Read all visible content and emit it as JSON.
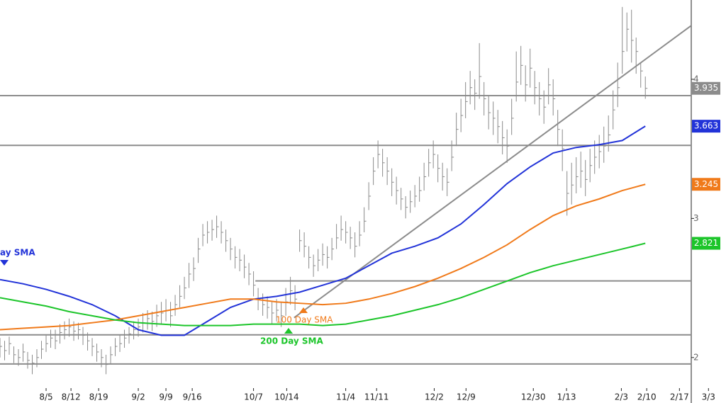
{
  "chart_data": {
    "type": "ohlc",
    "bar_color": "#8a8a8a",
    "line_color": "#8c8c8c",
    "xlim": [
      0,
      157.5
    ],
    "ylim": [
      1.78,
      4.57
    ],
    "xticks": [
      {
        "value": 10,
        "label": "8/5"
      },
      {
        "value": 15.4,
        "label": "8/12"
      },
      {
        "value": 21.4,
        "label": "8/19"
      },
      {
        "value": 30,
        "label": "9/2"
      },
      {
        "value": 36,
        "label": "9/9"
      },
      {
        "value": 41.7,
        "label": "9/16"
      },
      {
        "value": 55,
        "label": "10/7"
      },
      {
        "value": 62.2,
        "label": "10/14"
      },
      {
        "value": 75,
        "label": "11/4"
      },
      {
        "value": 81.7,
        "label": "11/11"
      },
      {
        "value": 94.2,
        "label": "12/2"
      },
      {
        "value": 101.1,
        "label": "12/9"
      },
      {
        "value": 115.7,
        "label": "12/30"
      },
      {
        "value": 122.9,
        "label": "1/13"
      },
      {
        "value": 134.8,
        "label": "2/3"
      },
      {
        "value": 140.3,
        "label": "2/10"
      },
      {
        "value": 147.4,
        "label": "2/17"
      },
      {
        "value": 153.7,
        "label": "3/3"
      }
    ],
    "yticks": [
      2,
      3,
      4
    ],
    "x": [
      0,
      1,
      2,
      3,
      4,
      5,
      6,
      7,
      8,
      9,
      10,
      11,
      12,
      13,
      14,
      15,
      16,
      17,
      18,
      19,
      20,
      21,
      22,
      23,
      24,
      25,
      26,
      27,
      28,
      29,
      30,
      31,
      32,
      33,
      34,
      35,
      36,
      37,
      38,
      39,
      40,
      41,
      42,
      43,
      44,
      45,
      46,
      47,
      48,
      49,
      50,
      51,
      52,
      53,
      54,
      55,
      56,
      57,
      58,
      59,
      60,
      61,
      62,
      63,
      64,
      65,
      66,
      67,
      68,
      69,
      70,
      71,
      72,
      73,
      74,
      75,
      76,
      77,
      78,
      79,
      80,
      81,
      82,
      83,
      84,
      85,
      86,
      87,
      88,
      89,
      90,
      91,
      92,
      93,
      94,
      95,
      96,
      97,
      98,
      99,
      100,
      101,
      102,
      103,
      104,
      105,
      106,
      107,
      108,
      109,
      110,
      111,
      112,
      113,
      114,
      115,
      116,
      117,
      118,
      119,
      120,
      121,
      122,
      123,
      124,
      125,
      126,
      127,
      128,
      129,
      130,
      131,
      132,
      133,
      134,
      135,
      136,
      137,
      138,
      139,
      140
    ],
    "high": [
      2.14,
      2.12,
      2.15,
      2.08,
      2.06,
      2.1,
      2.04,
      2.02,
      2.06,
      2.12,
      2.16,
      2.2,
      2.2,
      2.24,
      2.26,
      2.28,
      2.26,
      2.25,
      2.22,
      2.18,
      2.14,
      2.1,
      2.06,
      2.02,
      2.08,
      2.14,
      2.16,
      2.2,
      2.22,
      2.26,
      2.28,
      2.32,
      2.34,
      2.33,
      2.38,
      2.4,
      2.42,
      2.4,
      2.45,
      2.52,
      2.58,
      2.68,
      2.72,
      2.86,
      2.96,
      2.98,
      2.99,
      3.02,
      2.98,
      2.92,
      2.86,
      2.8,
      2.78,
      2.74,
      2.68,
      2.62,
      2.5,
      2.46,
      2.44,
      2.4,
      2.42,
      2.4,
      2.5,
      2.58,
      2.52,
      2.92,
      2.9,
      2.8,
      2.74,
      2.78,
      2.82,
      2.8,
      2.86,
      2.96,
      3.02,
      2.98,
      2.94,
      2.9,
      2.98,
      3.08,
      3.26,
      3.44,
      3.56,
      3.5,
      3.44,
      3.36,
      3.3,
      3.22,
      3.16,
      3.2,
      3.24,
      3.3,
      3.4,
      3.5,
      3.56,
      3.46,
      3.4,
      3.36,
      3.56,
      3.76,
      3.86,
      3.98,
      4.06,
      4.0,
      4.26,
      3.98,
      3.88,
      3.84,
      3.78,
      3.7,
      3.64,
      3.86,
      4.2,
      4.24,
      4.1,
      4.22,
      4.06,
      3.98,
      3.92,
      4.08,
      4.0,
      3.78,
      3.64,
      3.34,
      3.4,
      3.44,
      3.48,
      3.42,
      3.5,
      3.56,
      3.6,
      3.66,
      3.74,
      3.92,
      4.12,
      4.52,
      4.48,
      4.5,
      4.3,
      4.12,
      4.02
    ],
    "low": [
      2.0,
      1.98,
      2.02,
      1.96,
      1.94,
      1.97,
      1.92,
      1.88,
      1.93,
      1.99,
      2.04,
      2.07,
      2.06,
      2.1,
      2.13,
      2.15,
      2.12,
      2.13,
      2.09,
      2.05,
      2.01,
      1.97,
      1.93,
      1.88,
      1.95,
      2.01,
      2.04,
      2.07,
      2.1,
      2.13,
      2.15,
      2.18,
      2.2,
      2.19,
      2.22,
      2.24,
      2.26,
      2.22,
      2.3,
      2.36,
      2.42,
      2.5,
      2.55,
      2.68,
      2.8,
      2.82,
      2.84,
      2.86,
      2.82,
      2.76,
      2.7,
      2.64,
      2.62,
      2.57,
      2.52,
      2.44,
      2.34,
      2.3,
      2.28,
      2.24,
      2.26,
      2.22,
      2.3,
      2.38,
      2.34,
      2.76,
      2.72,
      2.64,
      2.58,
      2.62,
      2.66,
      2.64,
      2.7,
      2.78,
      2.84,
      2.82,
      2.78,
      2.72,
      2.8,
      2.9,
      3.06,
      3.24,
      3.36,
      3.3,
      3.24,
      3.16,
      3.1,
      3.06,
      3.0,
      3.04,
      3.08,
      3.12,
      3.2,
      3.3,
      3.36,
      3.26,
      3.2,
      3.16,
      3.34,
      3.52,
      3.62,
      3.72,
      3.82,
      3.78,
      3.86,
      3.74,
      3.64,
      3.6,
      3.54,
      3.46,
      3.4,
      3.6,
      3.84,
      3.96,
      3.84,
      3.94,
      3.82,
      3.74,
      3.68,
      3.82,
      3.74,
      3.52,
      3.34,
      3.02,
      3.1,
      3.18,
      3.22,
      3.16,
      3.26,
      3.32,
      3.36,
      3.4,
      3.48,
      3.64,
      3.8,
      4.04,
      4.2,
      4.12,
      4.04,
      3.94,
      3.86
    ],
    "close": [
      2.08,
      2.05,
      2.1,
      2.02,
      2.0,
      2.04,
      1.98,
      1.96,
      2.0,
      2.06,
      2.1,
      2.14,
      2.12,
      2.18,
      2.2,
      2.22,
      2.19,
      2.2,
      2.16,
      2.12,
      2.08,
      2.04,
      2.0,
      1.95,
      2.02,
      2.08,
      2.1,
      2.14,
      2.17,
      2.2,
      2.22,
      2.25,
      2.28,
      2.26,
      2.3,
      2.32,
      2.34,
      2.3,
      2.38,
      2.44,
      2.5,
      2.6,
      2.64,
      2.78,
      2.88,
      2.9,
      2.92,
      2.94,
      2.9,
      2.84,
      2.78,
      2.72,
      2.7,
      2.65,
      2.6,
      2.52,
      2.42,
      2.38,
      2.36,
      2.32,
      2.34,
      2.3,
      2.4,
      2.48,
      2.42,
      2.84,
      2.8,
      2.72,
      2.66,
      2.7,
      2.74,
      2.72,
      2.78,
      2.86,
      2.92,
      2.9,
      2.86,
      2.8,
      2.88,
      2.98,
      3.16,
      3.34,
      3.46,
      3.4,
      3.34,
      3.26,
      3.2,
      3.14,
      3.08,
      3.12,
      3.16,
      3.2,
      3.3,
      3.4,
      3.46,
      3.36,
      3.3,
      3.26,
      3.44,
      3.64,
      3.74,
      3.84,
      3.94,
      3.9,
      4.02,
      3.86,
      3.76,
      3.72,
      3.66,
      3.58,
      3.52,
      3.72,
      3.98,
      4.1,
      3.96,
      4.08,
      3.94,
      3.86,
      3.8,
      3.96,
      3.86,
      3.64,
      3.5,
      3.18,
      3.24,
      3.3,
      3.34,
      3.28,
      3.38,
      3.44,
      3.48,
      3.52,
      3.6,
      3.78,
      3.94,
      4.2,
      4.36,
      4.28,
      4.2,
      4.06,
      3.935
    ],
    "averages": [
      {
        "color": "#2233d8",
        "x": [
          0,
          5,
          10,
          15,
          20,
          25,
          30,
          35,
          40,
          45,
          50,
          55,
          60,
          65,
          70,
          75,
          80,
          85,
          90,
          95,
          100,
          105,
          110,
          115,
          120,
          125,
          130,
          135,
          140
        ],
        "values": [
          2.56,
          2.53,
          2.49,
          2.44,
          2.38,
          2.3,
          2.2,
          2.16,
          2.16,
          2.26,
          2.36,
          2.42,
          2.44,
          2.47,
          2.52,
          2.57,
          2.66,
          2.75,
          2.8,
          2.86,
          2.96,
          3.1,
          3.25,
          3.37,
          3.47,
          3.51,
          3.53,
          3.56,
          3.663
        ]
      },
      {
        "color": "#f07a1a",
        "x": [
          0,
          5,
          10,
          15,
          20,
          25,
          30,
          35,
          40,
          45,
          50,
          55,
          60,
          65,
          70,
          75,
          80,
          85,
          90,
          95,
          100,
          105,
          110,
          115,
          120,
          125,
          130,
          135,
          140
        ],
        "values": [
          2.2,
          2.21,
          2.22,
          2.23,
          2.25,
          2.27,
          2.3,
          2.33,
          2.36,
          2.39,
          2.42,
          2.42,
          2.4,
          2.39,
          2.38,
          2.39,
          2.42,
          2.46,
          2.51,
          2.57,
          2.64,
          2.72,
          2.81,
          2.92,
          3.02,
          3.09,
          3.14,
          3.2,
          3.245
        ]
      },
      {
        "color": "#1cc52a",
        "x": [
          0,
          5,
          10,
          15,
          20,
          25,
          30,
          35,
          40,
          45,
          50,
          55,
          60,
          65,
          70,
          75,
          80,
          85,
          90,
          95,
          100,
          105,
          110,
          115,
          120,
          125,
          130,
          135,
          140
        ],
        "values": [
          2.43,
          2.4,
          2.37,
          2.33,
          2.3,
          2.27,
          2.25,
          2.24,
          2.23,
          2.23,
          2.23,
          2.24,
          2.24,
          2.24,
          2.23,
          2.24,
          2.27,
          2.3,
          2.34,
          2.38,
          2.43,
          2.49,
          2.55,
          2.61,
          2.66,
          2.7,
          2.74,
          2.78,
          2.821
        ]
      }
    ],
    "annotations": [
      "ay SMA",
      "100  Day SMA",
      "200 Day SMA"
    ],
    "lines": [
      {
        "x": [
          0,
          150
        ],
        "y": [
          3.883,
          3.883
        ]
      },
      {
        "x": [
          0,
          150
        ],
        "y": [
          3.525,
          3.525
        ]
      },
      {
        "x": [
          55.4,
          150
        ],
        "y": [
          2.551,
          2.551
        ]
      },
      {
        "x": [
          0,
          150
        ],
        "y": [
          2.163,
          2.163
        ]
      },
      {
        "x": [
          0,
          150
        ],
        "y": [
          1.954,
          1.954
        ]
      },
      {
        "x": [
          63.8,
          150
        ],
        "y": [
          2.286,
          4.387
        ]
      }
    ]
  }
}
